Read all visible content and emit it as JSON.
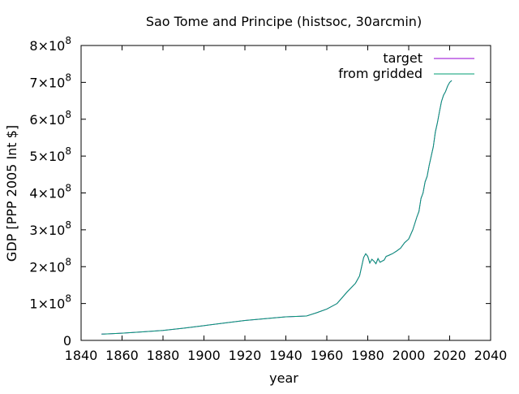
{
  "chart_data": {
    "type": "line",
    "title": "Sao Tome and Principe (histsoc, 30arcmin)",
    "xlabel": "year",
    "ylabel": "GDP [PPP 2005 Int $]",
    "xlim": [
      1840,
      2040
    ],
    "ylim": [
      0,
      800000000
    ],
    "x_ticks": [
      1840,
      1860,
      1880,
      1900,
      1920,
      1940,
      1960,
      1980,
      2000,
      2020,
      2040
    ],
    "y_ticks": [
      {
        "value": 0,
        "mantissa": "0",
        "exponent": ""
      },
      {
        "value": 100000000,
        "mantissa": "1×10",
        "exponent": "8"
      },
      {
        "value": 200000000,
        "mantissa": "2×10",
        "exponent": "8"
      },
      {
        "value": 300000000,
        "mantissa": "3×10",
        "exponent": "8"
      },
      {
        "value": 400000000,
        "mantissa": "4×10",
        "exponent": "8"
      },
      {
        "value": 500000000,
        "mantissa": "5×10",
        "exponent": "8"
      },
      {
        "value": 600000000,
        "mantissa": "6×10",
        "exponent": "8"
      },
      {
        "value": 700000000,
        "mantissa": "7×10",
        "exponent": "8"
      },
      {
        "value": 800000000,
        "mantissa": "8×10",
        "exponent": "8"
      }
    ],
    "grid": false,
    "legend_position": "top-right",
    "series": [
      {
        "name": "target",
        "color": "#9400d3",
        "points": [
          [
            1850,
            17000000
          ],
          [
            1860,
            19500000
          ],
          [
            1870,
            23000000
          ],
          [
            1880,
            27000000
          ],
          [
            1890,
            33000000
          ],
          [
            1900,
            40000000
          ],
          [
            1910,
            47000000
          ],
          [
            1920,
            54000000
          ],
          [
            1930,
            59000000
          ],
          [
            1940,
            64000000
          ],
          [
            1950,
            66000000
          ],
          [
            1955,
            75000000
          ],
          [
            1960,
            85000000
          ],
          [
            1965,
            100000000
          ],
          [
            1970,
            132000000
          ],
          [
            1974,
            155000000
          ],
          [
            1976,
            175000000
          ],
          [
            1977,
            200000000
          ],
          [
            1978,
            225000000
          ],
          [
            1979,
            235000000
          ],
          [
            1980,
            228000000
          ],
          [
            1981,
            210000000
          ],
          [
            1982,
            220000000
          ],
          [
            1983,
            215000000
          ],
          [
            1984,
            208000000
          ],
          [
            1985,
            222000000
          ],
          [
            1986,
            212000000
          ],
          [
            1987,
            215000000
          ],
          [
            1988,
            218000000
          ],
          [
            1989,
            228000000
          ],
          [
            1990,
            230000000
          ],
          [
            1992,
            235000000
          ],
          [
            1994,
            242000000
          ],
          [
            1996,
            250000000
          ],
          [
            1998,
            265000000
          ],
          [
            2000,
            275000000
          ],
          [
            2002,
            300000000
          ],
          [
            2004,
            335000000
          ],
          [
            2005,
            350000000
          ],
          [
            2006,
            385000000
          ],
          [
            2007,
            400000000
          ],
          [
            2008,
            430000000
          ],
          [
            2009,
            445000000
          ],
          [
            2010,
            475000000
          ],
          [
            2011,
            500000000
          ],
          [
            2012,
            525000000
          ],
          [
            2013,
            565000000
          ],
          [
            2014,
            590000000
          ],
          [
            2015,
            620000000
          ],
          [
            2016,
            648000000
          ],
          [
            2017,
            665000000
          ],
          [
            2018,
            675000000
          ],
          [
            2019,
            690000000
          ],
          [
            2020,
            700000000
          ],
          [
            2021,
            705000000
          ]
        ]
      },
      {
        "name": "from gridded",
        "color": "#009e73",
        "points": [
          [
            1850,
            17000000
          ],
          [
            1860,
            19500000
          ],
          [
            1870,
            23000000
          ],
          [
            1880,
            27000000
          ],
          [
            1890,
            33000000
          ],
          [
            1900,
            40000000
          ],
          [
            1910,
            47000000
          ],
          [
            1920,
            54000000
          ],
          [
            1930,
            59000000
          ],
          [
            1940,
            64000000
          ],
          [
            1950,
            66000000
          ],
          [
            1955,
            75000000
          ],
          [
            1960,
            85000000
          ],
          [
            1965,
            100000000
          ],
          [
            1970,
            132000000
          ],
          [
            1974,
            155000000
          ],
          [
            1976,
            175000000
          ],
          [
            1977,
            200000000
          ],
          [
            1978,
            225000000
          ],
          [
            1979,
            235000000
          ],
          [
            1980,
            228000000
          ],
          [
            1981,
            210000000
          ],
          [
            1982,
            220000000
          ],
          [
            1983,
            215000000
          ],
          [
            1984,
            208000000
          ],
          [
            1985,
            222000000
          ],
          [
            1986,
            212000000
          ],
          [
            1987,
            215000000
          ],
          [
            1988,
            218000000
          ],
          [
            1989,
            228000000
          ],
          [
            1990,
            230000000
          ],
          [
            1992,
            235000000
          ],
          [
            1994,
            242000000
          ],
          [
            1996,
            250000000
          ],
          [
            1998,
            265000000
          ],
          [
            2000,
            275000000
          ],
          [
            2002,
            300000000
          ],
          [
            2004,
            335000000
          ],
          [
            2005,
            350000000
          ],
          [
            2006,
            385000000
          ],
          [
            2007,
            400000000
          ],
          [
            2008,
            430000000
          ],
          [
            2009,
            445000000
          ],
          [
            2010,
            475000000
          ],
          [
            2011,
            500000000
          ],
          [
            2012,
            525000000
          ],
          [
            2013,
            565000000
          ],
          [
            2014,
            590000000
          ],
          [
            2015,
            620000000
          ],
          [
            2016,
            648000000
          ],
          [
            2017,
            665000000
          ],
          [
            2018,
            675000000
          ],
          [
            2019,
            690000000
          ],
          [
            2020,
            700000000
          ],
          [
            2021,
            705000000
          ]
        ]
      }
    ]
  }
}
